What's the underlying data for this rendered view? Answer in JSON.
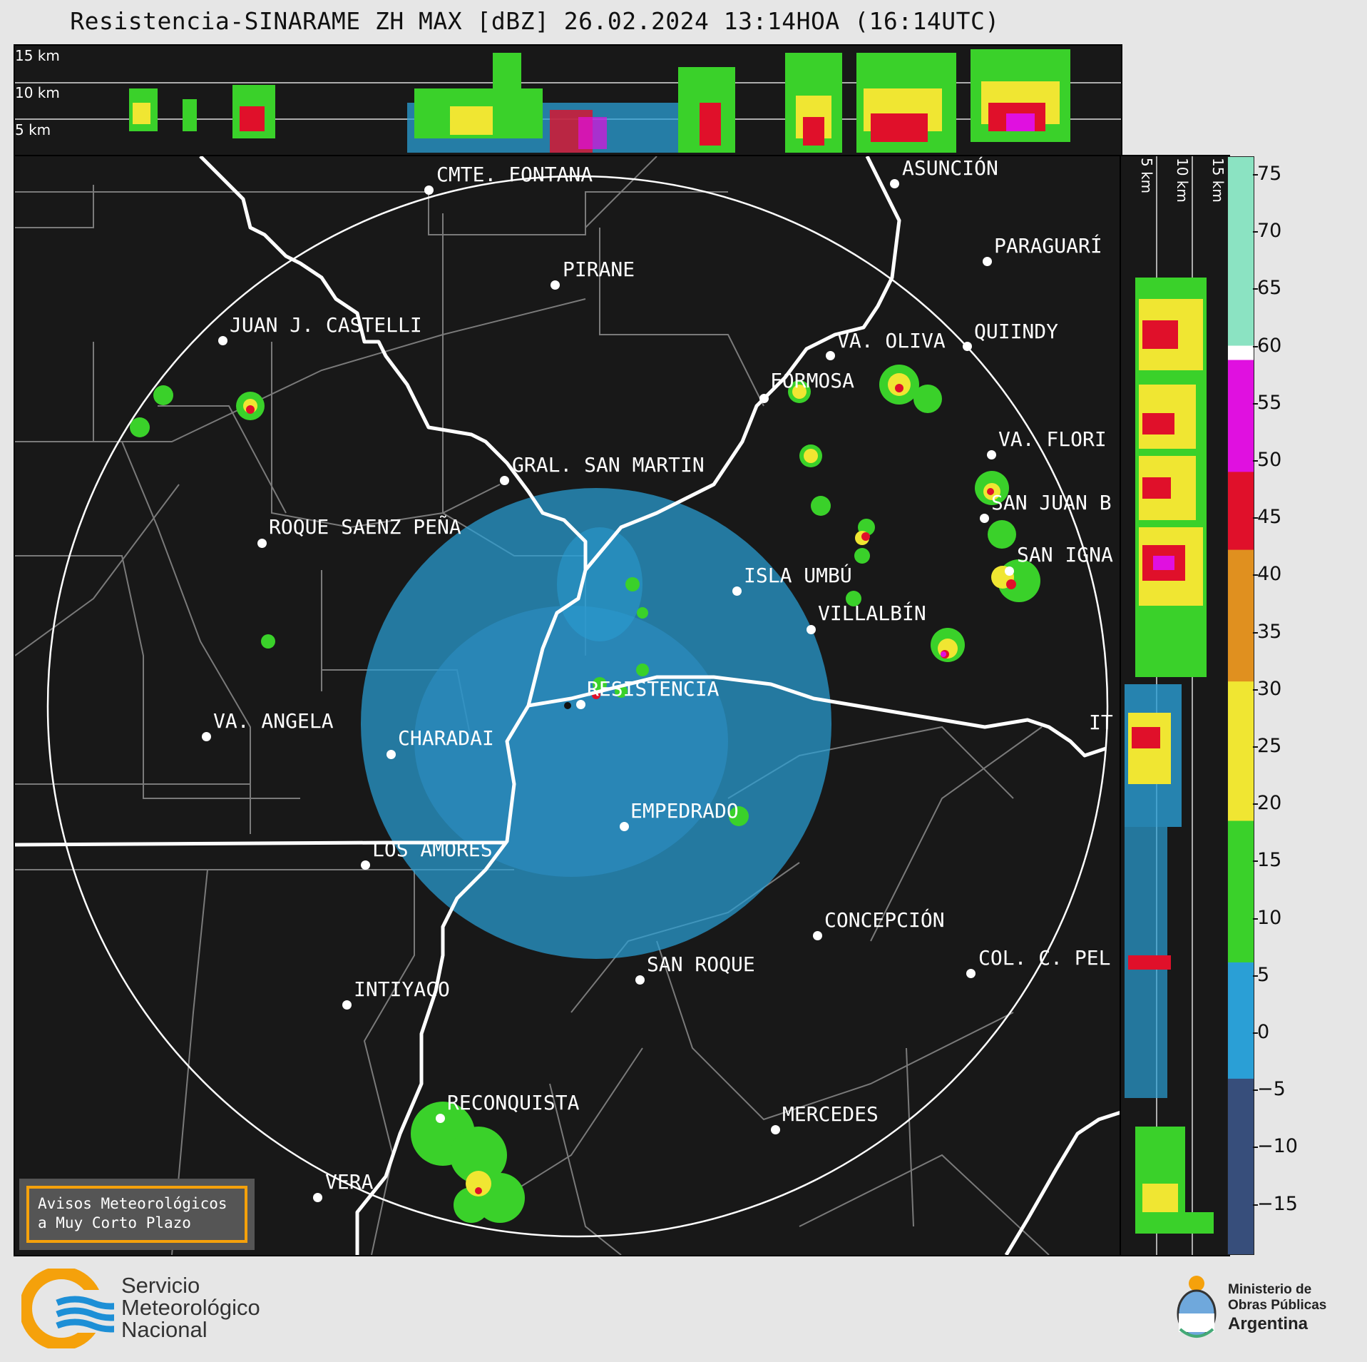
{
  "header": {
    "title": "Resistencia-SINARAME ZH MAX [dBZ] 26.02.2024 13:14HOA (16:14UTC)"
  },
  "top_panel": {
    "height_labels": [
      "15 km",
      "10 km",
      "5 km"
    ]
  },
  "side_panel": {
    "height_labels": [
      "5 km",
      "10 km",
      "15 km"
    ]
  },
  "colorbar": {
    "unit": "dBZ",
    "ticks": [
      "75",
      "70",
      "65",
      "60",
      "55",
      "50",
      "45",
      "40",
      "35",
      "30",
      "25",
      "20",
      "15",
      "10",
      "5",
      "0",
      "−5",
      "−10",
      "−15"
    ],
    "colors": {
      "low": "#3a3f6b",
      "blue": "#2a9fd6",
      "green": "#3ad12a",
      "yellow": "#f0e632",
      "orange": "#e0901f",
      "red": "#e0102a",
      "magenta": "#e010e0",
      "white": "#ffffff",
      "teal": "#8be3c2"
    }
  },
  "map": {
    "cities": [
      {
        "name": "CMTE. FONTANA"
      },
      {
        "name": "ASUNCIÓN"
      },
      {
        "name": "PARAGUARÍ"
      },
      {
        "name": "PIRANE"
      },
      {
        "name": "JUAN J. CASTELLI"
      },
      {
        "name": "VA. OLIVA"
      },
      {
        "name": "QUIINDY"
      },
      {
        "name": "FORMOSA"
      },
      {
        "name": "VA. FLORI"
      },
      {
        "name": "GRAL. SAN MARTIN"
      },
      {
        "name": "SAN JUAN B"
      },
      {
        "name": "ROQUE SAENZ PEÑA"
      },
      {
        "name": "SAN IGNA"
      },
      {
        "name": "ISLA UMBÚ"
      },
      {
        "name": "VILLALBÍN"
      },
      {
        "name": "RESISTENCIA"
      },
      {
        "name": "VA. ANGELA"
      },
      {
        "name": "CHARADAI"
      },
      {
        "name": "IT"
      },
      {
        "name": "EMPEDRADO"
      },
      {
        "name": "LOS AMORES"
      },
      {
        "name": "CONCEPCIÓN"
      },
      {
        "name": "SAN ROQUE"
      },
      {
        "name": "COL. C. PEL"
      },
      {
        "name": "INTIYACO"
      },
      {
        "name": "RECONQUISTA"
      },
      {
        "name": "MERCEDES"
      },
      {
        "name": "VERA"
      }
    ]
  },
  "notice": {
    "line1": "Avisos Meteorológicos",
    "line2": "a Muy Corto Plazo"
  },
  "footer": {
    "smn_line1": "Servicio",
    "smn_line2": "Meteorológico",
    "smn_line3": "Nacional",
    "ministry_line1": "Ministerio de",
    "ministry_line2": "Obras Públicas",
    "ministry_line3": "Argentina"
  }
}
